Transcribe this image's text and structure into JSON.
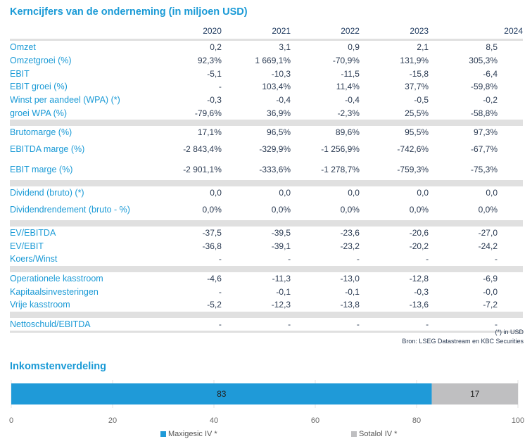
{
  "title": "Kerncijfers van de onderneming (in miljoen USD)",
  "years": [
    "2020",
    "2021",
    "2022",
    "2023",
    "2024"
  ],
  "groups": [
    {
      "rows": [
        {
          "label": "Omzet",
          "values": [
            "0,2",
            "3,1",
            "0,9",
            "2,1",
            "8,5"
          ]
        },
        {
          "label": "Omzetgroei (%)",
          "values": [
            "92,3%",
            "1 669,1%",
            "-70,9%",
            "131,9%",
            "305,3%"
          ]
        },
        {
          "label": "EBIT",
          "values": [
            "-5,1",
            "-10,3",
            "-11,5",
            "-15,8",
            "-6,4"
          ]
        },
        {
          "label": "EBIT groei (%)",
          "values": [
            "-",
            "103,4%",
            "11,4%",
            "37,7%",
            "-59,8%"
          ]
        },
        {
          "label": "Winst per aandeel (WPA) (*)",
          "values": [
            "-0,3",
            "-0,4",
            "-0,4",
            "-0,5",
            "-0,2"
          ]
        },
        {
          "label": "groei WPA (%)",
          "values": [
            "-79,6%",
            "36,9%",
            "-2,3%",
            "25,5%",
            "-58,8%"
          ]
        }
      ]
    },
    {
      "rows": [
        {
          "label": "Brutomarge (%)",
          "values": [
            "17,1%",
            "96,5%",
            "89,6%",
            "95,5%",
            "97,3%"
          ]
        },
        {
          "label": "EBITDA marge (%)",
          "values": [
            "-2 843,4%",
            "-329,9%",
            "-1 256,9%",
            "-742,6%",
            "-67,7%"
          ],
          "wrapped": true
        },
        {
          "label": "EBIT marge (%)",
          "values": [
            "-2 901,1%",
            "-333,6%",
            "-1 278,7%",
            "-759,3%",
            "-75,3%"
          ],
          "wrapped": true
        }
      ]
    },
    {
      "rows": [
        {
          "label": "Dividend (bruto) (*)",
          "values": [
            "0,0",
            "0,0",
            "0,0",
            "0,0",
            "0,0"
          ]
        },
        {
          "label": "Dividendrendement (bruto - %)",
          "values": [
            "0,0%",
            "0,0%",
            "0,0%",
            "0,0%",
            "0,0%"
          ],
          "wrapped": true
        }
      ]
    },
    {
      "rows": [
        {
          "label": "EV/EBITDA",
          "values": [
            "-37,5",
            "-39,5",
            "-23,6",
            "-20,6",
            "-27,0"
          ]
        },
        {
          "label": "EV/EBIT",
          "values": [
            "-36,8",
            "-39,1",
            "-23,2",
            "-20,2",
            "-24,2"
          ]
        },
        {
          "label": "Koers/Winst",
          "values": [
            "-",
            "-",
            "-",
            "-",
            "-"
          ]
        }
      ]
    },
    {
      "rows": [
        {
          "label": "Operationele kasstroom",
          "values": [
            "-4,6",
            "-11,3",
            "-13,0",
            "-12,8",
            "-6,9"
          ]
        },
        {
          "label": "Kapitaalsinvesteringen",
          "values": [
            "-",
            "-0,1",
            "-0,1",
            "-0,3",
            "-0,0"
          ]
        },
        {
          "label": "Vrije kasstroom",
          "values": [
            "-5,2",
            "-12,3",
            "-13,8",
            "-13,6",
            "-7,2"
          ]
        }
      ]
    },
    {
      "rows": [
        {
          "label": "Nettoschuld/EBITDA",
          "values": [
            "-",
            "-",
            "-",
            "-",
            "-"
          ]
        }
      ]
    }
  ],
  "footnote": "(*) in USD",
  "source": "Bron: LSEG Datastream en KBC Securities",
  "chart_data": {
    "type": "bar",
    "orientation": "horizontal-stacked",
    "title": "Inkomstenverdeling",
    "categories": [
      ""
    ],
    "series": [
      {
        "name": "Maxigesic IV *",
        "values": [
          83
        ],
        "color": "#1f9ad8"
      },
      {
        "name": "Sotalol IV *",
        "values": [
          17
        ],
        "color": "#bfbfc1"
      }
    ],
    "xlim": [
      0,
      100
    ],
    "xticks": [
      "0",
      "20",
      "40",
      "60",
      "80",
      "100"
    ],
    "grid": true,
    "legend": "bottom"
  }
}
